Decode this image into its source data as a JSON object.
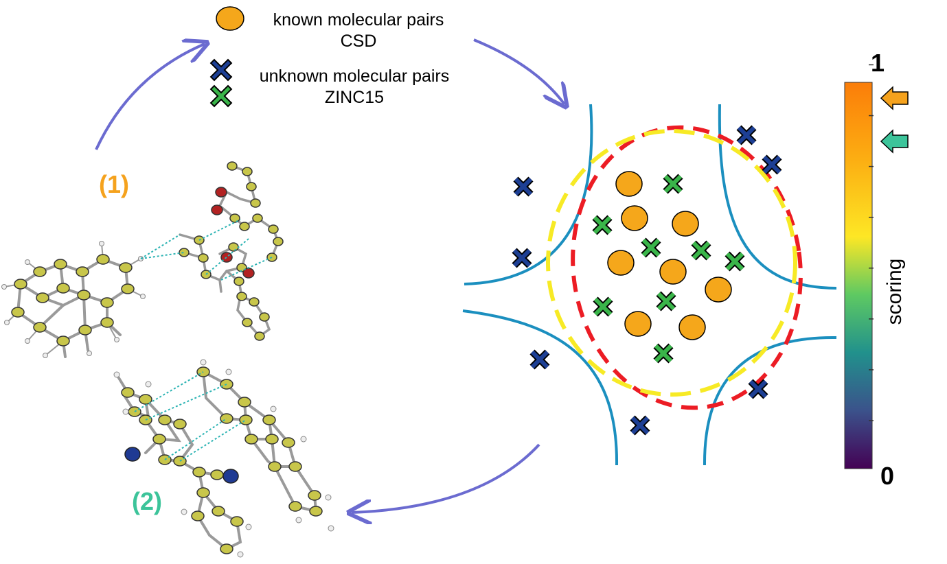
{
  "legend": {
    "known_label": "known molecular pairs",
    "known_source": "CSD",
    "unknown_label": "unknown molecular pairs",
    "unknown_source": "ZINC15"
  },
  "labels": {
    "pair1": "(1)",
    "pair2": "(2)"
  },
  "colorbar": {
    "top_label": "1",
    "bottom_label": "0",
    "title": "scoring",
    "range": [
      0,
      1
    ],
    "markers": [
      {
        "value": 0.96,
        "color": "#f5a21d"
      },
      {
        "value": 0.86,
        "color": "#3cc49a"
      }
    ]
  },
  "colors": {
    "known": "#f5a71b",
    "unknown_blue": "#1d3f94",
    "unknown_green": "#3ab54a",
    "arrow": "#6b6bd0",
    "boundary_blue": "#1b8fbf",
    "boundary_red": "#ec1c24",
    "boundary_yellow": "#f7ea25",
    "label1": "#f5a21d",
    "label2": "#3cc49a",
    "atom_carbon": "#c8c64a",
    "atom_oxygen": "#b22222",
    "atom_nitrogen": "#1f3a93",
    "h_bond": "#2bb3b3"
  }
}
